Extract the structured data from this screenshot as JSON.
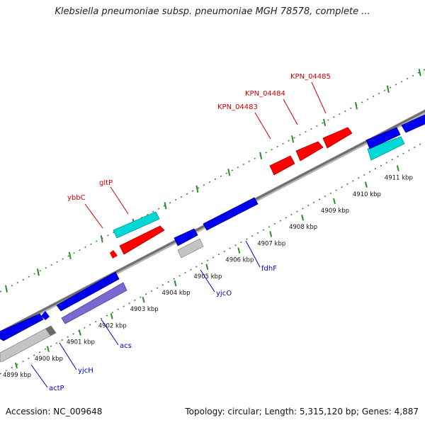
{
  "title": "Klebsiella pneumoniae subsp. pneumoniae MGH 78578, complete ...",
  "footer": {
    "accession": "Accession: NC_009648",
    "summary": "Topology: circular; Length: 5,315,120 bp; Genes: 4,887"
  },
  "colors": {
    "forward_gene": "#ff0000",
    "reverse_gene": "#0000ee",
    "rna": "#00d8d8",
    "other": "#c0c0c0",
    "pseudo": "#7a6ad0",
    "label_forward": "#cc0000",
    "label_reverse": "#0000cc",
    "tick_mark": "#2e8b2e"
  },
  "axis": {
    "unit": "kbp",
    "ticks": [
      {
        "label": "4899 kbp"
      },
      {
        "label": "4900 kbp"
      },
      {
        "label": "4901 kbp"
      },
      {
        "label": "4902 kbp"
      },
      {
        "label": "4903 kbp"
      },
      {
        "label": "4904 kbp"
      },
      {
        "label": "4905 kbp"
      },
      {
        "label": "4906 kbp"
      },
      {
        "label": "4907 kbp"
      },
      {
        "label": "4908 kbp"
      },
      {
        "label": "4909 kbp"
      },
      {
        "label": "4910 kbp"
      },
      {
        "label": "4911 kbp"
      }
    ]
  },
  "genes": [
    {
      "label": "ybbC",
      "strand": "forward"
    },
    {
      "label": "gltP",
      "strand": "forward"
    },
    {
      "label": "KPN_04483",
      "strand": "forward"
    },
    {
      "label": "KPN_04484",
      "strand": "forward"
    },
    {
      "label": "KPN_04485",
      "strand": "forward"
    },
    {
      "label": "actP",
      "strand": "reverse"
    },
    {
      "label": "yjcH",
      "strand": "reverse"
    },
    {
      "label": "acs",
      "strand": "reverse"
    },
    {
      "label": "yjcO",
      "strand": "reverse"
    },
    {
      "label": "fdhF",
      "strand": "reverse"
    }
  ]
}
